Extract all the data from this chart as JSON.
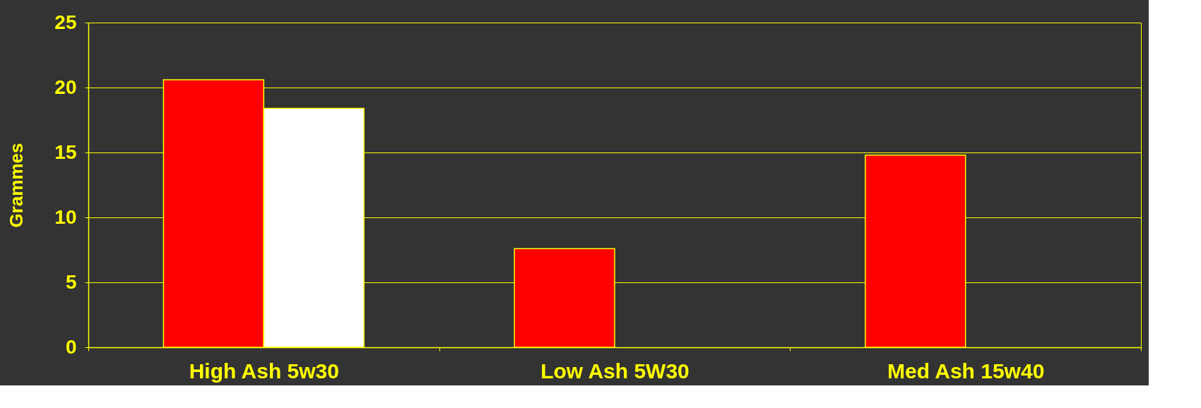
{
  "chart_data": {
    "type": "bar",
    "ylabel": "Grammes",
    "categories": [
      "High Ash 5w30",
      "Low Ash 5W30",
      "Med Ash 15w40"
    ],
    "series": [
      {
        "color": "#ff0000",
        "values": [
          20.6,
          7.6,
          14.8
        ]
      },
      {
        "color": "#ffffff",
        "values": [
          18.4,
          null,
          null
        ]
      }
    ],
    "ylim": [
      0,
      25
    ],
    "yticks": [
      0,
      5,
      10,
      15,
      20,
      25
    ],
    "grid": "y",
    "legend": false
  }
}
